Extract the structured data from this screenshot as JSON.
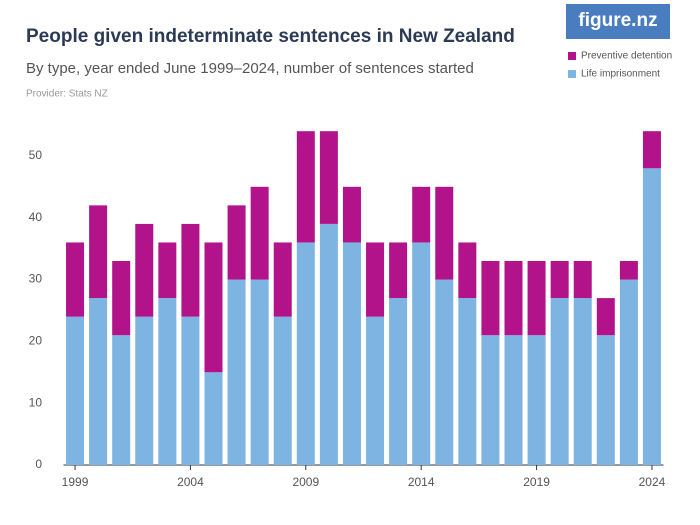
{
  "chart_data": {
    "type": "stacked-bar",
    "title": "People given indeterminate sentences in New Zealand",
    "subtitle": "By type, year ended June 1999–2024, number of sentences started",
    "provider": "Provider: Stats NZ",
    "logo": "figure.nz",
    "categories": [
      "1999",
      null,
      null,
      null,
      null,
      "2004",
      null,
      null,
      null,
      null,
      "2009",
      null,
      null,
      null,
      null,
      "2014",
      null,
      null,
      null,
      null,
      "2019",
      null,
      null,
      null,
      null,
      "2024"
    ],
    "series": [
      {
        "name": "Life imprisonment",
        "color": "#7db4e2",
        "values": [
          24,
          27,
          21,
          24,
          27,
          24,
          15,
          30,
          30,
          24,
          36,
          39,
          36,
          24,
          27,
          36,
          30,
          27,
          21,
          21,
          21,
          27,
          27,
          21,
          30,
          48
        ]
      },
      {
        "name": "Preventive detention",
        "color": "#b3138a",
        "values": [
          12,
          15,
          12,
          15,
          9,
          15,
          21,
          12,
          15,
          12,
          18,
          15,
          9,
          12,
          9,
          9,
          15,
          9,
          12,
          12,
          12,
          6,
          6,
          6,
          3,
          6
        ]
      }
    ],
    "ylim": [
      0,
      55
    ],
    "yticks": [
      0,
      10,
      20,
      30,
      40,
      50
    ],
    "legend": "top-right"
  }
}
